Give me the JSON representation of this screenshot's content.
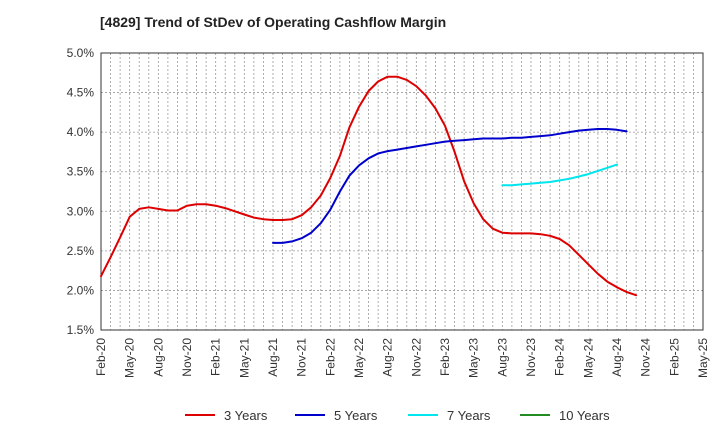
{
  "chart_data": {
    "type": "line",
    "title": "[4829]  Trend of StDev of Operating Cashflow Margin",
    "xlabel": "",
    "ylabel": "",
    "ylim": [
      1.5,
      5.0
    ],
    "y_ticks": [
      "1.5%",
      "2.0%",
      "2.5%",
      "3.0%",
      "3.5%",
      "4.0%",
      "4.5%",
      "5.0%"
    ],
    "y_tick_values": [
      1.5,
      2.0,
      2.5,
      3.0,
      3.5,
      4.0,
      4.5,
      5.0
    ],
    "x_ticks": [
      "Feb-20",
      "May-20",
      "Aug-20",
      "Nov-20",
      "Feb-21",
      "May-21",
      "Aug-21",
      "Nov-21",
      "Feb-22",
      "May-22",
      "Aug-22",
      "Nov-22",
      "Feb-23",
      "May-23",
      "Aug-23",
      "Nov-23",
      "Feb-24",
      "May-24",
      "Aug-24",
      "Nov-24",
      "Feb-25",
      "May-25"
    ],
    "grid": true,
    "legend_position": "bottom",
    "series": [
      {
        "name": "3 Years",
        "color": "#dd0000",
        "start": "Feb-20",
        "values": [
          2.18,
          2.42,
          2.67,
          2.93,
          3.03,
          3.05,
          3.03,
          3.01,
          3.01,
          3.07,
          3.09,
          3.09,
          3.07,
          3.04,
          3.0,
          2.96,
          2.92,
          2.9,
          2.89,
          2.89,
          2.9,
          2.95,
          3.05,
          3.2,
          3.42,
          3.7,
          4.06,
          4.32,
          4.52,
          4.64,
          4.7,
          4.7,
          4.66,
          4.58,
          4.46,
          4.3,
          4.08,
          3.75,
          3.38,
          3.1,
          2.9,
          2.78,
          2.73,
          2.72,
          2.72,
          2.72,
          2.71,
          2.69,
          2.65,
          2.57,
          2.45,
          2.33,
          2.21,
          2.11,
          2.04,
          1.98,
          1.94
        ]
      },
      {
        "name": "5 Years",
        "color": "#0000cc",
        "start": "Feb-21",
        "values": [
          null,
          null,
          null,
          null,
          null,
          null,
          null,
          null,
          null,
          null,
          null,
          null,
          null,
          null,
          null,
          null,
          null,
          null,
          2.6,
          2.6,
          2.62,
          2.66,
          2.73,
          2.85,
          3.02,
          3.25,
          3.45,
          3.58,
          3.67,
          3.73,
          3.76,
          3.78,
          3.8,
          3.82,
          3.84,
          3.86,
          3.88,
          3.89,
          3.9,
          3.91,
          3.92,
          3.92,
          3.92,
          3.93,
          3.93,
          3.94,
          3.95,
          3.96,
          3.98,
          4.0,
          4.02,
          4.03,
          4.04,
          4.04,
          4.03,
          4.01
        ]
      },
      {
        "name": "7 Years",
        "color": "#00e5ee",
        "values": [
          null,
          null,
          null,
          null,
          null,
          null,
          null,
          null,
          null,
          null,
          null,
          null,
          null,
          null,
          null,
          null,
          null,
          null,
          null,
          null,
          null,
          null,
          null,
          null,
          null,
          null,
          null,
          null,
          null,
          null,
          null,
          null,
          null,
          null,
          null,
          null,
          null,
          null,
          null,
          null,
          null,
          null,
          3.33,
          3.33,
          3.34,
          3.35,
          3.36,
          3.37,
          3.39,
          3.41,
          3.44,
          3.47,
          3.51,
          3.55,
          3.59
        ]
      },
      {
        "name": "10 Years",
        "color": "#228b22",
        "values": []
      }
    ]
  }
}
